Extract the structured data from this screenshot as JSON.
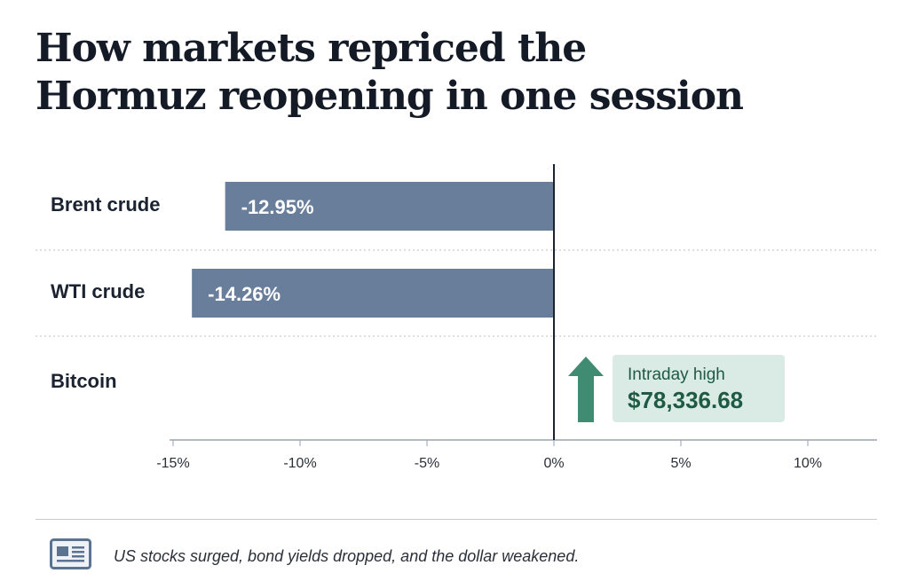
{
  "chart_data": {
    "type": "bar",
    "orientation": "horizontal",
    "title": "How markets repriced the Hormuz reopening in one session",
    "title_lines": [
      "How markets repriced the",
      "Hormuz reopening in one session"
    ],
    "categories": [
      "Brent crude",
      "WTI crude",
      "Bitcoin"
    ],
    "values": [
      -12.95,
      -14.26,
      null
    ],
    "value_labels": [
      "-12.95%",
      "-14.26%",
      ""
    ],
    "xlim": [
      -15,
      13
    ],
    "x_ticks": [
      -15,
      -10,
      -5,
      0,
      5,
      10
    ],
    "x_tick_labels": [
      "-15%",
      "-10%",
      "-5%",
      "0%",
      "5%",
      "10%"
    ],
    "annotation": {
      "category": "Bitcoin",
      "direction": "up",
      "label": "Intraday high",
      "value": "$78,336.68"
    },
    "grid": false
  },
  "footer": {
    "note": "US stocks surged, bond yields dropped, and the dollar weakened.",
    "icon": "newspaper-icon"
  },
  "colors": {
    "bar": "#687e9b",
    "arrow": "#3f8c73",
    "callout_bg": "#d9ebe4",
    "callout_text": "#1f5a45"
  }
}
